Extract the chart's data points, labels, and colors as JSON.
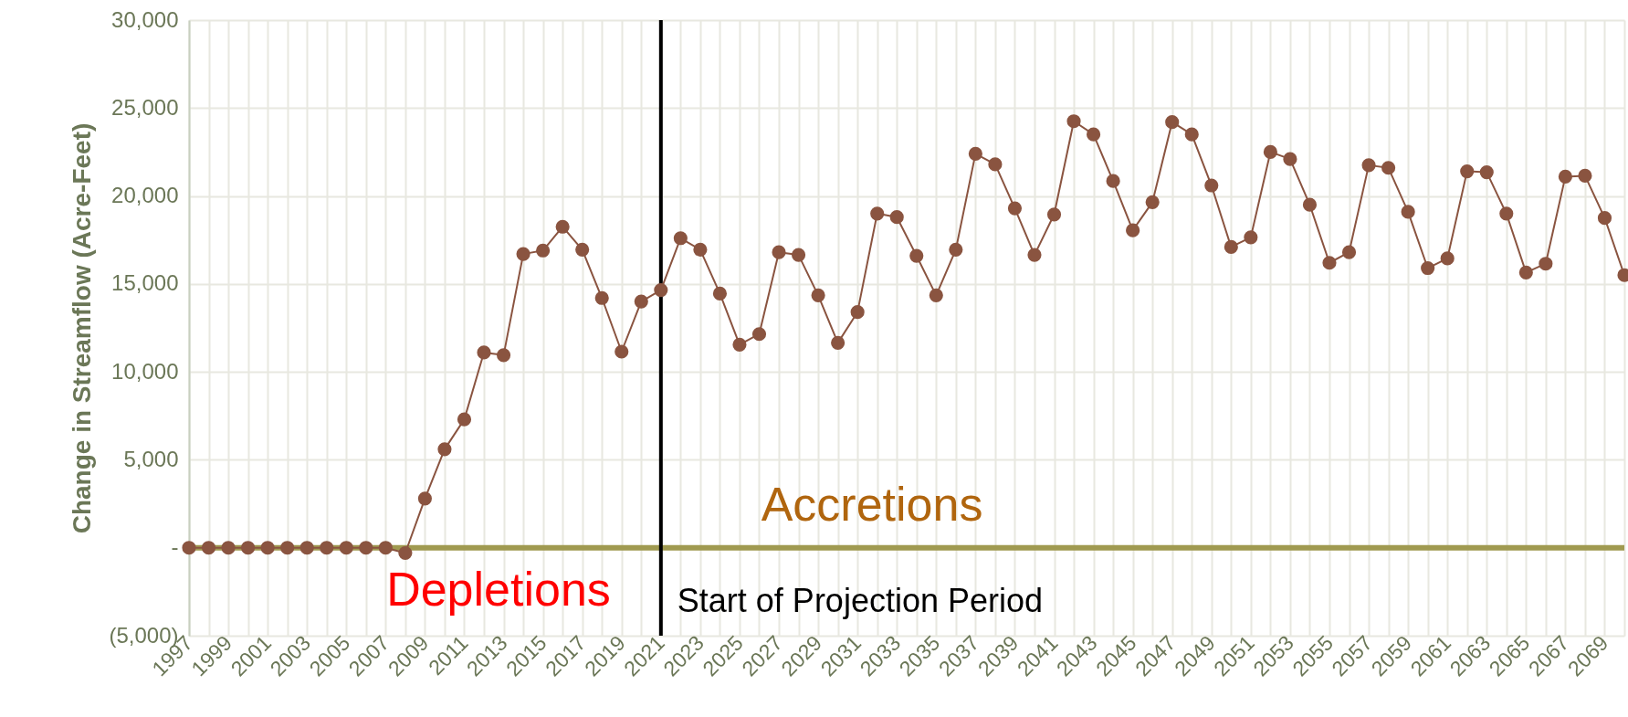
{
  "chart_data": {
    "type": "line",
    "ylabel": "Change in Streamflow (Acre-Feet)",
    "categories": [
      "1997",
      null,
      "1999",
      null,
      "2001",
      null,
      "2003",
      null,
      "2005",
      null,
      "2007",
      null,
      "2009",
      null,
      "2011",
      null,
      "2013",
      null,
      "2015",
      null,
      "2017",
      null,
      "2019",
      null,
      "2021",
      null,
      "2023",
      null,
      "2025",
      null,
      "2027",
      null,
      "2029",
      null,
      "2031",
      null,
      "2033",
      null,
      "2035",
      null,
      "2037",
      null,
      "2039",
      null,
      "2041",
      null,
      "2043",
      null,
      "2045",
      null,
      "2047",
      null,
      "2049",
      null,
      "2051",
      null,
      "2053",
      null,
      "2055",
      null,
      "2057",
      null,
      "2059",
      null,
      "2061",
      null,
      "2063",
      null,
      "2065",
      null,
      "2067",
      null,
      "2069",
      null
    ],
    "series": [
      {
        "color": "#8a5440",
        "values": [
          0,
          0,
          0,
          0,
          0,
          0,
          0,
          0,
          0,
          0,
          0,
          -300,
          2800,
          5600,
          7300,
          11100,
          10950,
          16700,
          16900,
          18250,
          16950,
          14200,
          11150,
          14000,
          14650,
          17600,
          16950,
          14450,
          11550,
          12150,
          16800,
          16650,
          14350,
          11650,
          13400,
          19000,
          18800,
          16600,
          14350,
          16950,
          22400,
          21800,
          19300,
          16650,
          18950,
          24250,
          23500,
          20850,
          18050,
          19650,
          24200,
          23500,
          20600,
          17100,
          17650,
          22500,
          22100,
          19500,
          16200,
          16800,
          21750,
          21600,
          19100,
          15900,
          16450,
          21400,
          21350,
          19000,
          15650,
          16150,
          21100,
          21150,
          18750,
          15500
        ]
      }
    ],
    "ylim": [
      -5000,
      30000
    ],
    "yticks": [
      {
        "value": -5000,
        "label": "(5,000)"
      },
      {
        "value": 0,
        "label": "-"
      },
      {
        "value": 5000,
        "label": "5,000"
      },
      {
        "value": 10000,
        "label": "10,000"
      },
      {
        "value": 15000,
        "label": "15,000"
      },
      {
        "value": 20000,
        "label": "20,000"
      },
      {
        "value": 25000,
        "label": "25,000"
      },
      {
        "value": 30000,
        "label": "30,000"
      }
    ],
    "ref_lines": [
      {
        "axis": "y",
        "value": 0,
        "color": "#a09a50"
      },
      {
        "axis": "x",
        "value": "2021",
        "label": "Start of Projection Period",
        "color": "#000000"
      }
    ],
    "annotations": [
      "Depletions",
      "Accretions"
    ],
    "grid": true,
    "marker": "circle",
    "line_style": "solid"
  }
}
